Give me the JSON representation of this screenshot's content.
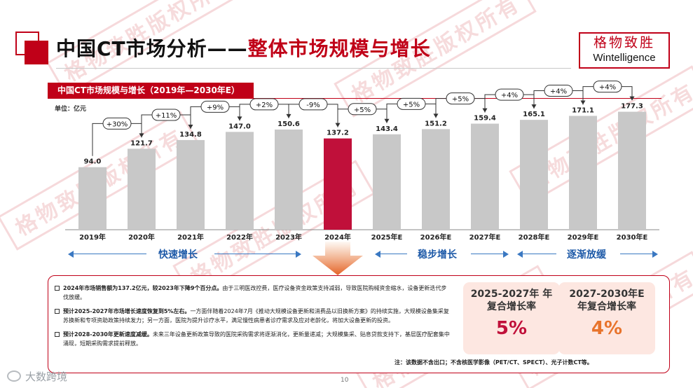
{
  "header": {
    "title_black": "中国CT市场分析——",
    "title_red": "整体市场规模与增长",
    "logo_cn": "格物致胜",
    "logo_en": "Wintelligence"
  },
  "chart_header": {
    "title": "中国CT市场规模与增长（2019年—2030年E）",
    "unit": "单位：亿元"
  },
  "chart_data": {
    "type": "bar",
    "title": "中国CT市场规模与增长（2019年—2030年E）",
    "ylabel": "单位：亿元",
    "categories": [
      "2019年",
      "2020年",
      "2021年",
      "2022年",
      "2023年",
      "2024年",
      "2025年E",
      "2026年E",
      "2027年E",
      "2028年E",
      "2029年E",
      "2030年E"
    ],
    "values": [
      94.0,
      121.7,
      134.8,
      147.0,
      150.6,
      137.2,
      143.4,
      151.2,
      159.4,
      165.1,
      171.1,
      177.3
    ],
    "value_labels": [
      "94.0",
      "121.7",
      "134.8",
      "147.0",
      "150.6",
      "137.2",
      "143.4",
      "151.2",
      "159.4",
      "165.1",
      "171.1",
      "177.3"
    ],
    "growth_labels": [
      "+30%",
      "+11%",
      "+9%",
      "+2%",
      "-9%",
      "+5%",
      "+5%",
      "+5%",
      "+4%",
      "+4%",
      "+4%"
    ],
    "highlight_index": 5,
    "bar_color": "#c8c8c8",
    "highlight_color": "#c0103a",
    "ylim": [
      0,
      200
    ],
    "grid": false
  },
  "phases": [
    {
      "label": "快速增长"
    },
    {
      "label": "稳步增长"
    },
    {
      "label": "逐渐放缓"
    }
  ],
  "bullets": [
    {
      "lead": "2024年市场销售额为137.2亿元，较2023年下降9个百分点。",
      "text": "由于三明医改控费，医疗设备资金政策支持减弱，导致医院购械资金缩水，设备更新迭代步伐放缓。"
    },
    {
      "lead": "预计2025-2027年市场增长速度恢复到5%左右。",
      "text": "一方面伴随着2024年7月《推动大规模设备更新和消费品以旧换新方案》的持续实施，大规模设备集采复苏换新和专项资助政策持续发力；另一方面，医院为提升诊疗水平，满足慢性病患者诊疗需求及应对老龄化，将加大设备更新的投资。"
    },
    {
      "lead": "预计2028-2030年更新速度减缓。",
      "text": "未来三年设备更新政策导致的医院采购需求将逐渐消化，更新量递减；大规模集采、贴息贷款支持下，基层医疗配套集中涌现，短期采购需求提前释放。"
    }
  ],
  "cagr": [
    {
      "label": "2025-2027年 年复合增长率",
      "value": "5%",
      "color": "#c0103a"
    },
    {
      "label": "2027-2030年E 年复合增长率",
      "value": "4%",
      "color": "#e8742c"
    }
  ],
  "note": "注：该数据不含出口；不含核医学影像（PET/CT、SPECT）、光子计数CT等。",
  "page_number": "10",
  "footer_brand": "大数跨境",
  "watermark": "格物致胜版权所有"
}
